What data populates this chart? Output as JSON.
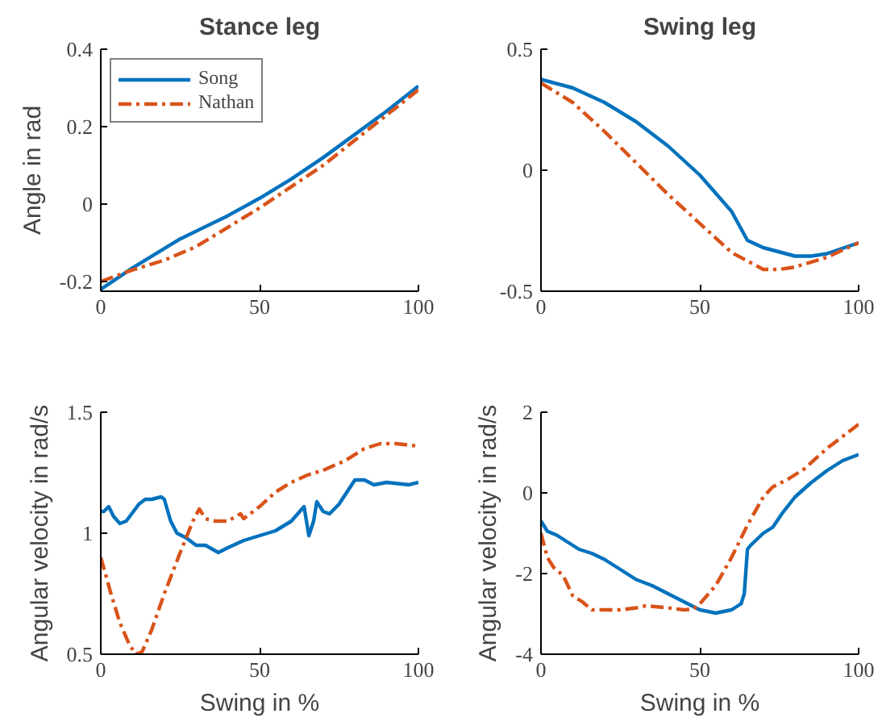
{
  "chart_data": [
    {
      "type": "line",
      "title": "Stance leg",
      "ylabel": "Angle in rad",
      "xlim": [
        0,
        100
      ],
      "xticks": [
        0,
        50,
        100
      ],
      "ylim": [
        -0.225,
        0.4
      ],
      "yticks": [
        -0.2,
        0,
        0.2,
        0.4
      ],
      "legend": "top left",
      "grid": false,
      "series": [
        {
          "name": "Song",
          "color": "#0072bd",
          "line_style": "solid",
          "x": [
            0,
            10,
            20,
            25,
            40,
            50,
            60,
            70,
            80,
            90,
            100
          ],
          "values": [
            -0.22,
            -0.165,
            -0.115,
            -0.09,
            -0.03,
            0.015,
            0.065,
            0.12,
            0.18,
            0.24,
            0.305
          ]
        },
        {
          "name": "Nathan",
          "color": "#d95319",
          "line_style": "dashdot",
          "x": [
            0,
            10,
            20,
            30,
            40,
            50,
            60,
            70,
            80,
            90,
            100
          ],
          "values": [
            -0.2,
            -0.17,
            -0.145,
            -0.11,
            -0.06,
            -0.01,
            0.045,
            0.1,
            0.165,
            0.23,
            0.295
          ]
        }
      ]
    },
    {
      "type": "line",
      "title": "Swing leg",
      "xlim": [
        0,
        100
      ],
      "xticks": [
        0,
        50,
        100
      ],
      "ylim": [
        -0.5,
        0.5
      ],
      "yticks": [
        -0.5,
        0,
        0.5
      ],
      "grid": false,
      "series": [
        {
          "color": "#0072bd",
          "line_style": "solid",
          "x": [
            0,
            10,
            20,
            30,
            40,
            50,
            60,
            65,
            70,
            80,
            85,
            90,
            100
          ],
          "values": [
            0.375,
            0.34,
            0.28,
            0.2,
            0.1,
            -0.02,
            -0.17,
            -0.29,
            -0.32,
            -0.355,
            -0.355,
            -0.345,
            -0.3
          ]
        },
        {
          "color": "#d95319",
          "line_style": "dashdot",
          "x": [
            0,
            10,
            20,
            30,
            40,
            50,
            60,
            70,
            75,
            80,
            90,
            100
          ],
          "values": [
            0.36,
            0.28,
            0.16,
            0.03,
            -0.1,
            -0.22,
            -0.34,
            -0.41,
            -0.41,
            -0.4,
            -0.36,
            -0.3
          ]
        }
      ]
    },
    {
      "type": "line",
      "xlabel": "Swing in %",
      "ylabel": "Angular velocity in rad/s",
      "xlim": [
        0,
        100
      ],
      "xticks": [
        0,
        50,
        100
      ],
      "ylim": [
        0.5,
        1.5
      ],
      "yticks": [
        0.5,
        1,
        1.5
      ],
      "grid": false,
      "series": [
        {
          "color": "#0072bd",
          "line_style": "solid",
          "x": [
            0,
            1,
            2.5,
            4,
            6,
            8,
            12,
            14,
            16,
            19,
            20,
            22,
            24,
            27,
            30,
            33,
            37,
            40,
            45,
            50,
            55,
            60,
            64,
            65.5,
            67,
            68,
            70,
            72,
            75,
            80,
            83,
            86,
            90,
            97,
            100
          ],
          "values": [
            1.09,
            1.09,
            1.11,
            1.07,
            1.04,
            1.05,
            1.12,
            1.14,
            1.14,
            1.15,
            1.14,
            1.05,
            1.0,
            0.98,
            0.95,
            0.95,
            0.92,
            0.94,
            0.97,
            0.99,
            1.01,
            1.05,
            1.11,
            0.99,
            1.05,
            1.13,
            1.09,
            1.08,
            1.12,
            1.22,
            1.22,
            1.2,
            1.21,
            1.2,
            1.21
          ]
        },
        {
          "color": "#d95319",
          "line_style": "dashdot",
          "x": [
            0,
            3,
            6,
            9,
            11,
            13,
            16,
            20,
            25,
            29,
            31,
            33,
            36,
            40,
            44,
            45,
            50,
            55,
            60,
            65,
            70,
            77,
            83,
            88,
            93,
            100
          ],
          "values": [
            0.9,
            0.76,
            0.63,
            0.54,
            0.5,
            0.51,
            0.6,
            0.75,
            0.92,
            1.05,
            1.1,
            1.06,
            1.05,
            1.05,
            1.08,
            1.06,
            1.11,
            1.17,
            1.21,
            1.24,
            1.26,
            1.3,
            1.35,
            1.37,
            1.37,
            1.36
          ]
        }
      ]
    },
    {
      "type": "line",
      "xlabel": "Swing in %",
      "ylabel": "Angular velocity in rad/s",
      "xlim": [
        0,
        100
      ],
      "xticks": [
        0,
        50,
        100
      ],
      "ylim": [
        -4,
        2
      ],
      "yticks": [
        -4,
        -2,
        0,
        2
      ],
      "grid": false,
      "series": [
        {
          "color": "#0072bd",
          "line_style": "solid",
          "x": [
            0,
            2,
            5,
            8,
            12,
            16,
            20,
            25,
            30,
            35,
            40,
            45,
            50,
            55,
            60,
            63,
            64,
            65,
            66,
            70,
            73,
            76,
            80,
            85,
            90,
            95,
            100
          ],
          "values": [
            -0.7,
            -0.95,
            -1.05,
            -1.2,
            -1.4,
            -1.5,
            -1.65,
            -1.9,
            -2.15,
            -2.3,
            -2.5,
            -2.7,
            -2.9,
            -2.98,
            -2.9,
            -2.75,
            -2.5,
            -1.4,
            -1.3,
            -1.0,
            -0.85,
            -0.5,
            -0.1,
            0.25,
            0.55,
            0.8,
            0.95
          ]
        },
        {
          "color": "#d95319",
          "line_style": "dashdot",
          "x": [
            0,
            2,
            4,
            7,
            10,
            13,
            16,
            20,
            25,
            30,
            33,
            40,
            45,
            48,
            50,
            55,
            60,
            65,
            70,
            73,
            78,
            83,
            90,
            100
          ],
          "values": [
            -1.0,
            -1.6,
            -1.85,
            -2.05,
            -2.55,
            -2.7,
            -2.9,
            -2.9,
            -2.9,
            -2.85,
            -2.8,
            -2.85,
            -2.9,
            -2.88,
            -2.75,
            -2.3,
            -1.6,
            -0.8,
            -0.1,
            0.15,
            0.35,
            0.6,
            1.1,
            1.7
          ]
        }
      ]
    }
  ]
}
